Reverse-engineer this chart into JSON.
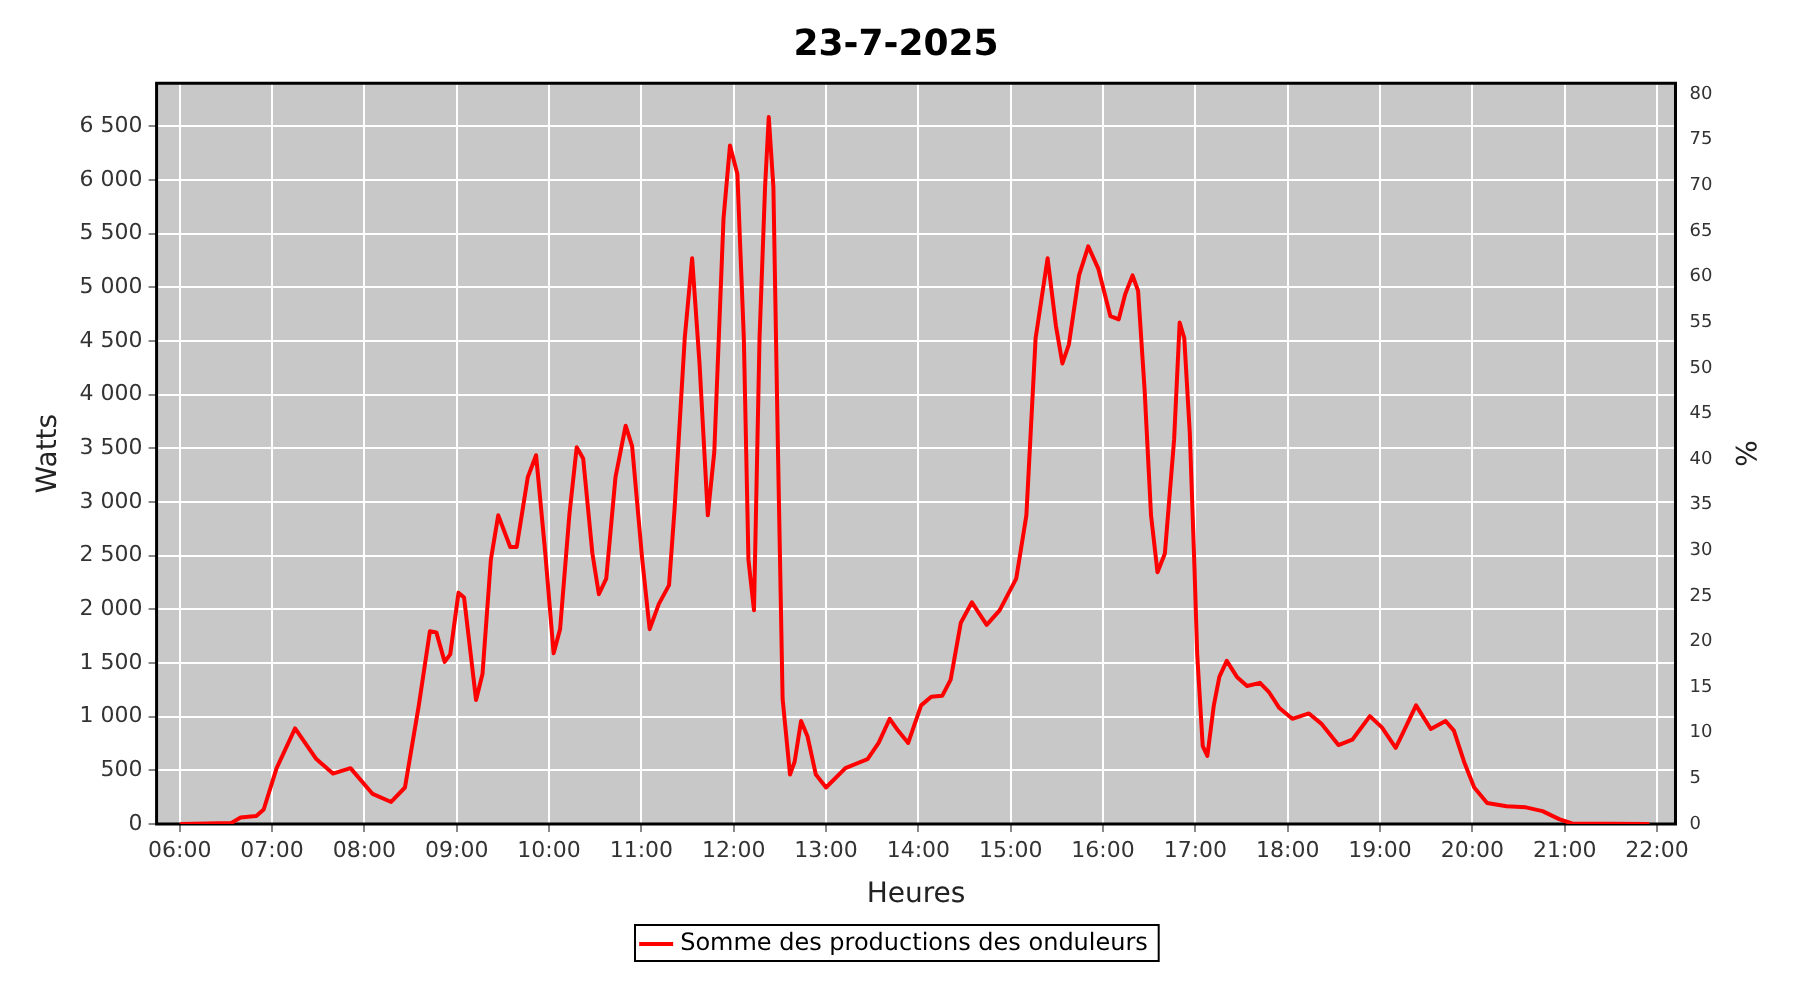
{
  "chart_data": {
    "type": "line",
    "title": "23-7-2025",
    "xlabel": "Heures",
    "ylabel": "Watts",
    "y2label": "%",
    "xlim": [
      5.75,
      22.2
    ],
    "ylim": [
      0,
      6900
    ],
    "y2lim": [
      0,
      81.2
    ],
    "xticks": [
      {
        "value": 6,
        "label": "06:00"
      },
      {
        "value": 7,
        "label": "07:00"
      },
      {
        "value": 8,
        "label": "08:00"
      },
      {
        "value": 9,
        "label": "09:00"
      },
      {
        "value": 10,
        "label": "10:00"
      },
      {
        "value": 11,
        "label": "11:00"
      },
      {
        "value": 12,
        "label": "12:00"
      },
      {
        "value": 13,
        "label": "13:00"
      },
      {
        "value": 14,
        "label": "14:00"
      },
      {
        "value": 15,
        "label": "15:00"
      },
      {
        "value": 16,
        "label": "16:00"
      },
      {
        "value": 17,
        "label": "17:00"
      },
      {
        "value": 18,
        "label": "18:00"
      },
      {
        "value": 19,
        "label": "19:00"
      },
      {
        "value": 20,
        "label": "20:00"
      },
      {
        "value": 21,
        "label": "21:00"
      },
      {
        "value": 22,
        "label": "22:00"
      }
    ],
    "yticks": [
      0,
      500,
      {
        "value": 1000,
        "label": "1 000"
      },
      {
        "value": 1500,
        "label": "1 500"
      },
      {
        "value": 2000,
        "label": "2 000"
      },
      {
        "value": 2500,
        "label": "2 500"
      },
      {
        "value": 3000,
        "label": "3 000"
      },
      {
        "value": 3500,
        "label": "3 500"
      },
      {
        "value": 4000,
        "label": "4 000"
      },
      {
        "value": 4500,
        "label": "4 500"
      },
      {
        "value": 5000,
        "label": "5 000"
      },
      {
        "value": 5500,
        "label": "5 500"
      },
      {
        "value": 6000,
        "label": "6 000"
      },
      {
        "value": 6500,
        "label": "6 500"
      }
    ],
    "y2ticks": [
      0,
      5,
      10,
      15,
      20,
      25,
      30,
      35,
      40,
      45,
      50,
      55,
      60,
      65,
      70,
      75,
      80
    ],
    "grid": true,
    "legend": "bottom",
    "marker": "none",
    "line_style": "solid",
    "series": [
      {
        "name": "Somme des productions des onduleurs",
        "color": "#ff0000",
        "x": [
          6.02,
          6.56,
          6.66,
          6.83,
          6.91,
          7.05,
          7.25,
          7.48,
          7.66,
          7.85,
          8.09,
          8.29,
          8.44,
          8.59,
          8.71,
          8.78,
          8.87,
          8.93,
          9.02,
          9.08,
          9.21,
          9.28,
          9.37,
          9.45,
          9.58,
          9.65,
          9.77,
          9.86,
          9.96,
          10.05,
          10.12,
          10.22,
          10.3,
          10.37,
          10.47,
          10.54,
          10.62,
          10.72,
          10.83,
          10.9,
          11.01,
          11.09,
          11.19,
          11.3,
          11.36,
          11.47,
          11.55,
          11.63,
          11.72,
          11.79,
          11.89,
          11.96,
          12.04,
          12.11,
          12.16,
          12.22,
          12.28,
          12.34,
          12.38,
          12.43,
          12.48,
          12.53,
          12.61,
          12.66,
          12.73,
          12.8,
          12.89,
          13.0,
          13.21,
          13.45,
          13.57,
          13.69,
          13.78,
          13.89,
          14.03,
          14.14,
          14.26,
          14.35,
          14.46,
          14.58,
          14.74,
          14.88,
          15.06,
          15.17,
          15.27,
          15.4,
          15.49,
          15.56,
          15.63,
          15.74,
          15.84,
          15.95,
          16.08,
          16.17,
          16.24,
          16.32,
          16.38,
          16.45,
          16.52,
          16.59,
          16.67,
          16.77,
          16.83,
          16.88,
          16.94,
          16.99,
          17.02,
          17.08,
          17.13,
          17.2,
          17.26,
          17.34,
          17.45,
          17.56,
          17.7,
          17.8,
          17.91,
          18.05,
          18.23,
          18.37,
          18.55,
          18.7,
          18.89,
          19.02,
          19.17,
          19.26,
          19.39,
          19.55,
          19.71,
          19.8,
          19.91,
          20.02,
          20.16,
          20.37,
          20.58,
          20.76,
          20.94,
          21.08,
          21.9
        ],
        "values": [
          0,
          10,
          60,
          75,
          135,
          520,
          890,
          605,
          470,
          520,
          280,
          205,
          340,
          1105,
          1795,
          1785,
          1510,
          1580,
          2155,
          2110,
          1155,
          1400,
          2460,
          2875,
          2580,
          2580,
          3230,
          3435,
          2520,
          1590,
          1815,
          2875,
          3510,
          3405,
          2520,
          2140,
          2285,
          3230,
          3710,
          3520,
          2460,
          1815,
          2050,
          2225,
          2935,
          4525,
          5270,
          4290,
          2875,
          3465,
          5640,
          6320,
          6055,
          4525,
          2460,
          1990,
          4525,
          5935,
          6585,
          5935,
          3465,
          1165,
          460,
          580,
          960,
          815,
          460,
          340,
          520,
          605,
          755,
          980,
          870,
          755,
          1105,
          1185,
          1195,
          1345,
          1875,
          2065,
          1855,
          1990,
          2285,
          2875,
          4525,
          5270,
          4640,
          4290,
          4465,
          5110,
          5380,
          5170,
          4730,
          4700,
          4935,
          5110,
          4965,
          4050,
          2875,
          2345,
          2520,
          3580,
          4670,
          4525,
          3640,
          2400,
          1580,
          725,
          635,
          1105,
          1370,
          1520,
          1370,
          1285,
          1315,
          1225,
          1080,
          980,
          1030,
          930,
          735,
          785,
          1005,
          900,
          710,
          870,
          1105,
          885,
          960,
          870,
          580,
          340,
          195,
          165,
          155,
          120,
          45,
          5,
          0
        ]
      }
    ]
  }
}
